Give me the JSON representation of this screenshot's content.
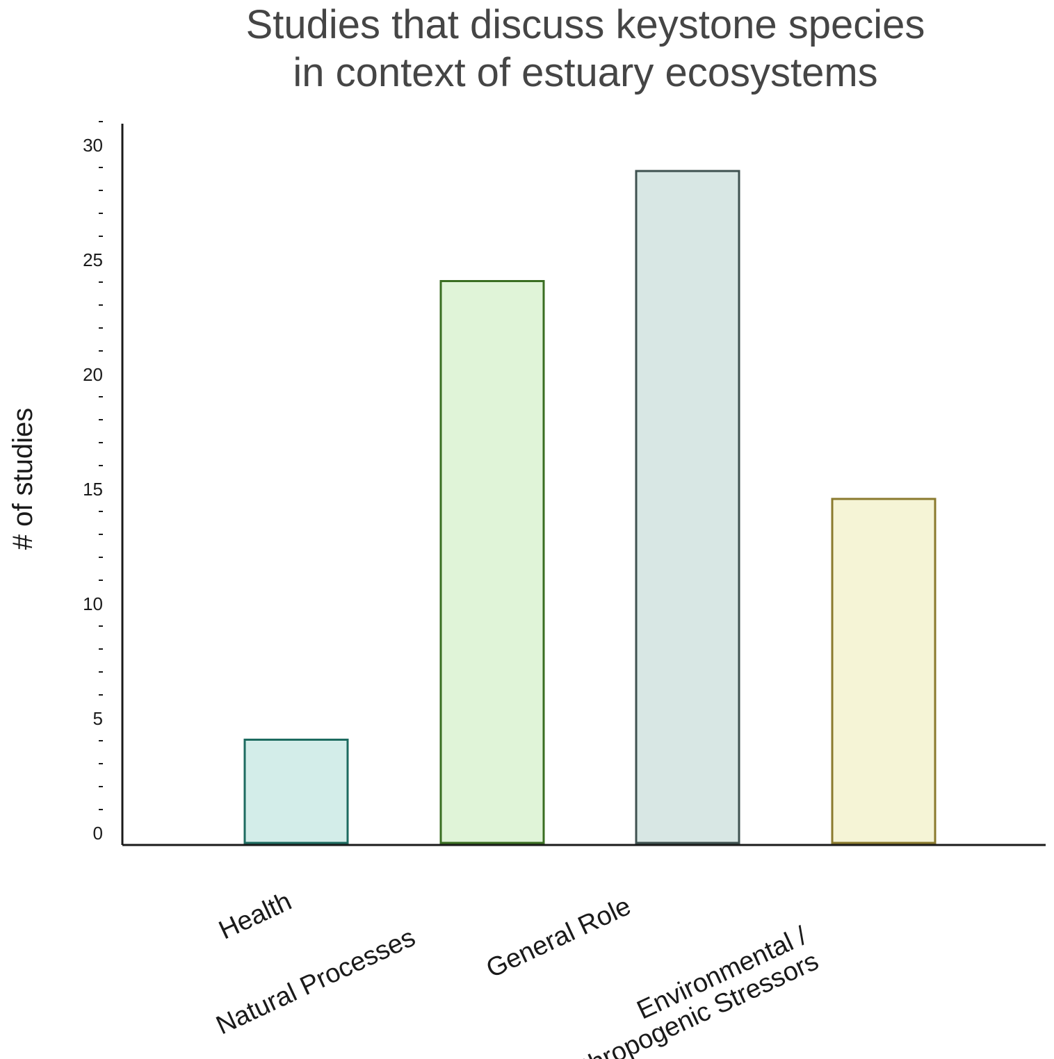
{
  "chart_data": {
    "type": "bar",
    "title_lines": [
      "Studies that discuss keystone species",
      "in context of estuary ecosystems"
    ],
    "xlabel": "",
    "ylabel": "# of studies",
    "ylim": [
      0,
      31
    ],
    "yticks": [
      0,
      5,
      10,
      15,
      20,
      25,
      30
    ],
    "ytick_labels": [
      "0",
      "5",
      "10",
      "15",
      "20",
      "25",
      "30"
    ],
    "minor_tick_step": 1,
    "grid": false,
    "legend": "none",
    "categories": [
      {
        "label_lines": [
          "Health"
        ]
      },
      {
        "label_lines": [
          "Natural Processes"
        ]
      },
      {
        "label_lines": [
          "General Role"
        ]
      },
      {
        "label_lines": [
          "Environmental /",
          "Anthropogenic Stressors"
        ]
      }
    ],
    "values": [
      4.5,
      24.5,
      29.3,
      15
    ],
    "colors": {
      "fills": [
        "#d3ede9",
        "#e0f4d8",
        "#d8e7e4",
        "#f5f4d6"
      ],
      "strokes": [
        "#1d6b60",
        "#3a6e22",
        "#3f5250",
        "#8a7a2e"
      ],
      "axis": "#1a1a1a",
      "title": "#454545"
    }
  }
}
